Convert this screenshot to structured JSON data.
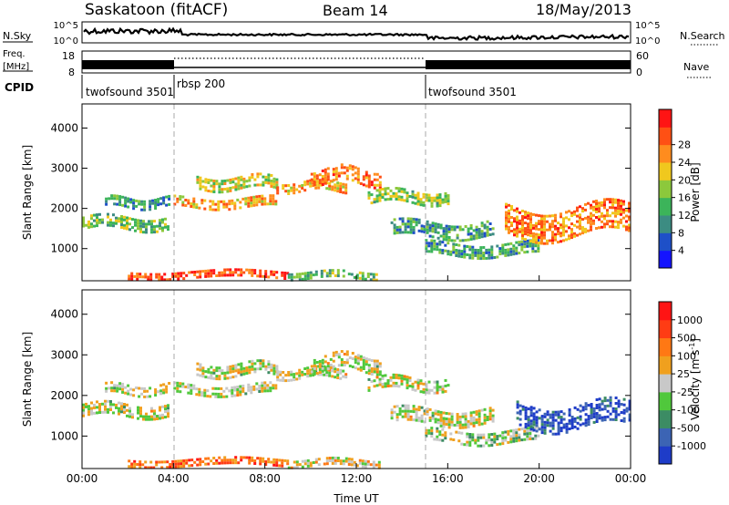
{
  "header": {
    "station": "Saskatoon (fitACF)",
    "beam": "Beam 14",
    "date": "18/May/2013"
  },
  "nsky_panel": {
    "left_label": "N.Sky",
    "right_label": "N.Search",
    "left_ticks": [
      "10^5",
      "10^0"
    ],
    "right_ticks": [
      "10^5",
      "10^0"
    ]
  },
  "freq_panel": {
    "left_label": "Freq.",
    "left_unit": "[MHz]",
    "right_label": "Nave",
    "left_ticks": [
      "18",
      "8"
    ],
    "right_ticks": [
      "60",
      "0"
    ]
  },
  "cpid_panel": {
    "label": "CPID",
    "segments": [
      {
        "name": "twofsound 3501",
        "start_hour": 0,
        "end_hour": 4
      },
      {
        "name": "rbsp 200",
        "start_hour": 4,
        "end_hour": 15
      },
      {
        "name": "twofsound 3501",
        "start_hour": 15,
        "end_hour": 24
      }
    ]
  },
  "chart_data": [
    {
      "type": "heatmap",
      "quantity": "Power",
      "ylabel": "Slant Range [km]",
      "y_ticks": [
        "1000",
        "2000",
        "3000",
        "4000"
      ],
      "ylim": [
        200,
        4600
      ],
      "xlim": [
        0,
        24
      ],
      "colorbar_label": "Power [dB]",
      "colorbar_ticks": [
        "4",
        "8",
        "12",
        "16",
        "20",
        "24",
        "28"
      ],
      "colorbar_colors": [
        "#1414ff",
        "#1e50c8",
        "#3c8c82",
        "#3cb45a",
        "#8cc83c",
        "#f0c81e",
        "#ff8c1e",
        "#ff5014",
        "#ff1414"
      ],
      "bands": [
        {
          "x": [
            0.0,
            3.8
          ],
          "y_center": 1650,
          "y_width": 300,
          "level": 0.45
        },
        {
          "x": [
            1.0,
            3.8
          ],
          "y_center": 2150,
          "y_width": 250,
          "level": 0.3
        },
        {
          "x": [
            4.0,
            8.5
          ],
          "y_center": 2150,
          "y_width": 250,
          "level": 0.7
        },
        {
          "x": [
            5.0,
            8.5
          ],
          "y_center": 2650,
          "y_width": 300,
          "level": 0.55
        },
        {
          "x": [
            8.5,
            11.5
          ],
          "y_center": 2550,
          "y_width": 250,
          "level": 0.7
        },
        {
          "x": [
            10.0,
            13.0
          ],
          "y_center": 2800,
          "y_width": 400,
          "level": 0.75
        },
        {
          "x": [
            12.5,
            16.0
          ],
          "y_center": 2300,
          "y_width": 300,
          "level": 0.5
        },
        {
          "x": [
            13.5,
            18.0
          ],
          "y_center": 1500,
          "y_width": 350,
          "level": 0.35
        },
        {
          "x": [
            15.0,
            20.0
          ],
          "y_center": 1000,
          "y_width": 300,
          "level": 0.35
        },
        {
          "x": [
            18.5,
            24.0
          ],
          "y_center": 1700,
          "y_width": 700,
          "level": 0.75
        },
        {
          "x": [
            2.0,
            9.0
          ],
          "y_center": 350,
          "y_width": 200,
          "level": 0.85
        },
        {
          "x": [
            9.0,
            13.0
          ],
          "y_center": 350,
          "y_width": 180,
          "level": 0.45
        }
      ]
    },
    {
      "type": "heatmap",
      "quantity": "Velocity",
      "ylabel": "Slant Range [km]",
      "y_ticks": [
        "1000",
        "2000",
        "3000",
        "4000"
      ],
      "ylim": [
        200,
        4600
      ],
      "xlim": [
        0,
        24
      ],
      "x_ticks": [
        "00:00",
        "04:00",
        "08:00",
        "12:00",
        "16:00",
        "20:00",
        "00:00"
      ],
      "xlabel": "Time UT",
      "colorbar_label": "Velocity [m s",
      "colorbar_unit_sup": "-1",
      "colorbar_ticks": [
        "1000",
        "500",
        "100",
        "25",
        "-25",
        "-100",
        "-500",
        "-1000"
      ],
      "colorbar_colors": [
        "#1e3cc8",
        "#3c64b4",
        "#3c8c64",
        "#50c83c",
        "#c8c8c8",
        "#f0a01e",
        "#ff7814",
        "#ff3c14",
        "#ff1414"
      ],
      "bands": [
        {
          "x": [
            0.0,
            3.8
          ],
          "y_center": 1650,
          "y_width": 300,
          "level": 0.5
        },
        {
          "x": [
            1.0,
            3.8
          ],
          "y_center": 2150,
          "y_width": 250,
          "level": 0.5
        },
        {
          "x": [
            4.0,
            8.5
          ],
          "y_center": 2150,
          "y_width": 250,
          "level": 0.5
        },
        {
          "x": [
            5.0,
            8.5
          ],
          "y_center": 2650,
          "y_width": 300,
          "level": 0.5
        },
        {
          "x": [
            8.5,
            11.5
          ],
          "y_center": 2550,
          "y_width": 250,
          "level": 0.5
        },
        {
          "x": [
            10.0,
            13.0
          ],
          "y_center": 2800,
          "y_width": 400,
          "level": 0.5
        },
        {
          "x": [
            12.5,
            16.0
          ],
          "y_center": 2300,
          "y_width": 300,
          "level": 0.5
        },
        {
          "x": [
            13.5,
            18.0
          ],
          "y_center": 1500,
          "y_width": 350,
          "level": 0.5
        },
        {
          "x": [
            15.0,
            20.0
          ],
          "y_center": 1000,
          "y_width": 300,
          "level": 0.45
        },
        {
          "x": [
            19.0,
            24.0
          ],
          "y_center": 1500,
          "y_width": 600,
          "level": 0.1
        },
        {
          "x": [
            2.0,
            9.0
          ],
          "y_center": 350,
          "y_width": 200,
          "level": 0.75
        },
        {
          "x": [
            9.0,
            13.0
          ],
          "y_center": 350,
          "y_width": 180,
          "level": 0.55
        }
      ]
    }
  ]
}
